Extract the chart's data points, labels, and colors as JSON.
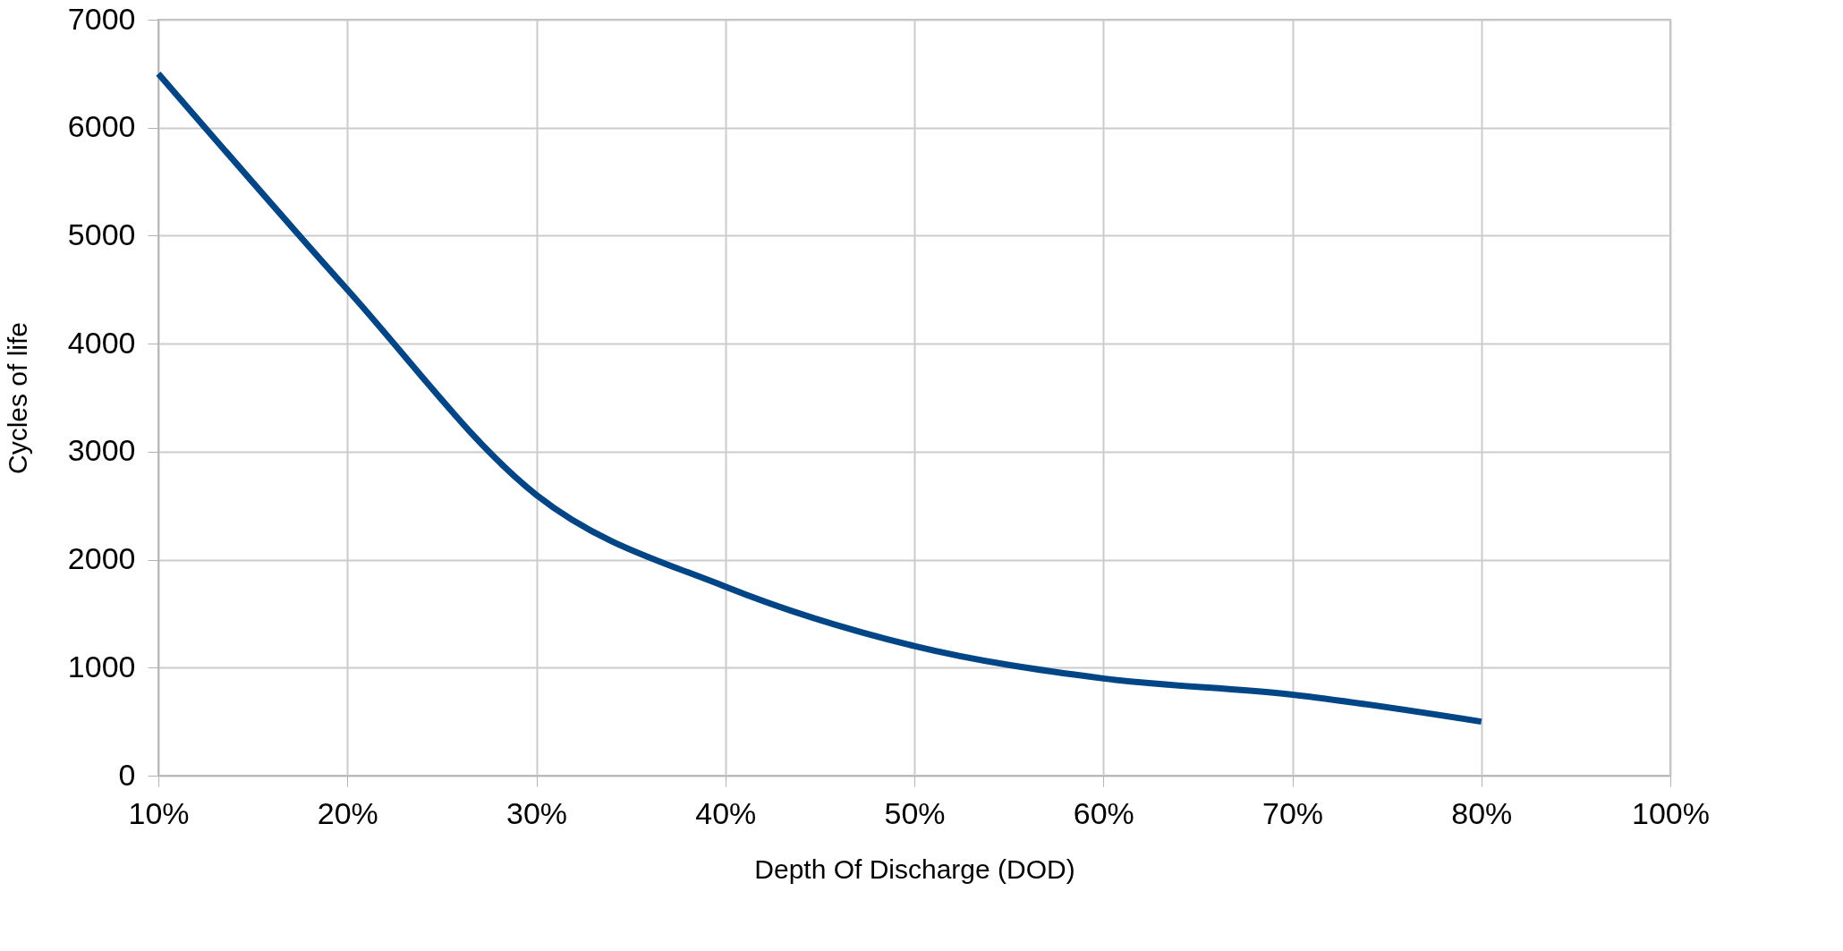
{
  "chart_data": {
    "type": "line",
    "xlabel": "Depth Of Discharge (DOD)",
    "ylabel": "Cycles of  life",
    "categories": [
      "10%",
      "20%",
      "30%",
      "40%",
      "50%",
      "60%",
      "70%",
      "80%",
      "100%"
    ],
    "series": [
      {
        "color": "#004586",
        "values": [
          6500,
          4500,
          2600,
          1750,
          1200,
          900,
          750,
          500,
          null
        ]
      }
    ],
    "ylim": [
      0,
      7000
    ],
    "yticks": [
      0,
      1000,
      2000,
      3000,
      4000,
      5000,
      6000,
      7000
    ],
    "grid": true,
    "legend": false,
    "marker": "none",
    "line_style": "solid"
  }
}
